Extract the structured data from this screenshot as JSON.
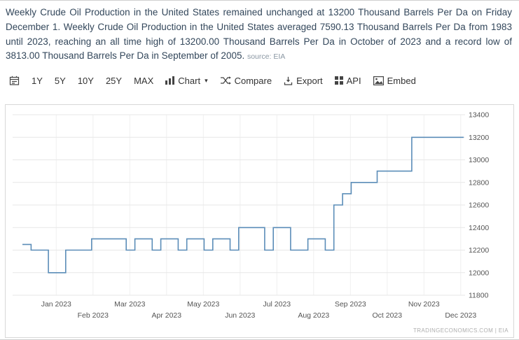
{
  "description": {
    "text": "Weekly Crude Oil Production in the United States remained unchanged at 13200 Thousand Barrels Per Da on Friday December 1. Weekly Crude Oil Production in the United States averaged 7590.13 Thousand Barrels Per Da from 1983 until 2023, reaching an all time high of 13200.00 Thousand Barrels Per Da in October of 2023 and a record low of 3813.00 Thousand Barrels Per Da in September of 2005. ",
    "source_label": "source: EIA"
  },
  "toolbar": {
    "ranges": [
      "1Y",
      "5Y",
      "10Y",
      "25Y",
      "MAX"
    ],
    "chart_label": "Chart",
    "compare_label": "Compare",
    "export_label": "Export",
    "api_label": "API",
    "embed_label": "Embed"
  },
  "icons": {
    "chevron_down": "▾"
  },
  "chart_data": {
    "type": "line",
    "step": true,
    "title": "Weekly Crude Oil Production in the United States",
    "xlabel": "",
    "ylabel": "Thousand Barrels Per Da",
    "frequency": "weekly",
    "ylim": [
      11800,
      13400
    ],
    "y_ticks": [
      13400,
      13200,
      13000,
      12800,
      12600,
      12400,
      12200,
      12000,
      11800
    ],
    "x_labels": [
      "Jan 2023",
      "Feb 2023",
      "Mar 2023",
      "Apr 2023",
      "May 2023",
      "Jun 2023",
      "Jul 2023",
      "Aug 2023",
      "Sep 2023",
      "Oct 2023",
      "Nov 2023",
      "Dec 2023"
    ],
    "grid": true,
    "legend": "none",
    "y_axis_side": "right",
    "line_color": "#5b8db8",
    "values": [
      12250,
      12200,
      12200,
      12000,
      12000,
      12200,
      12200,
      12200,
      12300,
      12300,
      12300,
      12300,
      12200,
      12300,
      12300,
      12200,
      12300,
      12300,
      12200,
      12300,
      12300,
      12200,
      12300,
      12300,
      12200,
      12400,
      12400,
      12400,
      12200,
      12400,
      12400,
      12200,
      12200,
      12300,
      12300,
      12200,
      12600,
      12700,
      12800,
      12800,
      12800,
      12900,
      12900,
      12900,
      12900,
      13200,
      13200,
      13200,
      13200,
      13200,
      13200,
      13200
    ],
    "attribution": "TRADINGECONOMICS.COM | EIA"
  }
}
